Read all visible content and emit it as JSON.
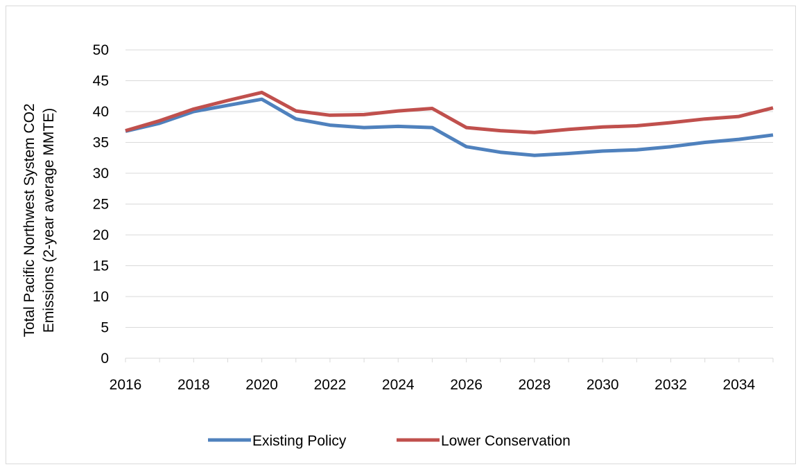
{
  "chart_data": {
    "type": "line",
    "title": "",
    "ylabel_lines": [
      "Total Pacific Northwest System CO2",
      "Emissions (2-year average MMTE)"
    ],
    "xlabel": "",
    "xlim": [
      2016,
      2035
    ],
    "ylim": [
      0,
      50
    ],
    "ytick_step": 5,
    "yticks": [
      "0",
      "5",
      "10",
      "15",
      "20",
      "25",
      "30",
      "35",
      "40",
      "45",
      "50"
    ],
    "xticks": [
      "2016",
      "2018",
      "2020",
      "2022",
      "2024",
      "2026",
      "2028",
      "2030",
      "2032",
      "2034"
    ],
    "grid": true,
    "legend_position": "bottom",
    "x": [
      2016,
      2017,
      2018,
      2019,
      2020,
      2021,
      2022,
      2023,
      2024,
      2025,
      2026,
      2027,
      2028,
      2029,
      2030,
      2031,
      2032,
      2033,
      2034,
      2035
    ],
    "series": [
      {
        "name": "Existing Policy",
        "color": "#4f81bd",
        "values": [
          36.8,
          38.1,
          40.0,
          41.0,
          42.0,
          38.8,
          37.8,
          37.4,
          37.6,
          37.4,
          34.3,
          33.4,
          32.9,
          33.2,
          33.6,
          33.8,
          34.3,
          35.0,
          35.5,
          36.2
        ]
      },
      {
        "name": "Lower Conservation",
        "color": "#c0504d",
        "values": [
          36.9,
          38.5,
          40.4,
          41.8,
          43.1,
          40.1,
          39.4,
          39.5,
          40.1,
          40.5,
          37.4,
          36.9,
          36.6,
          37.1,
          37.5,
          37.7,
          38.2,
          38.8,
          39.2,
          40.6
        ]
      }
    ]
  }
}
